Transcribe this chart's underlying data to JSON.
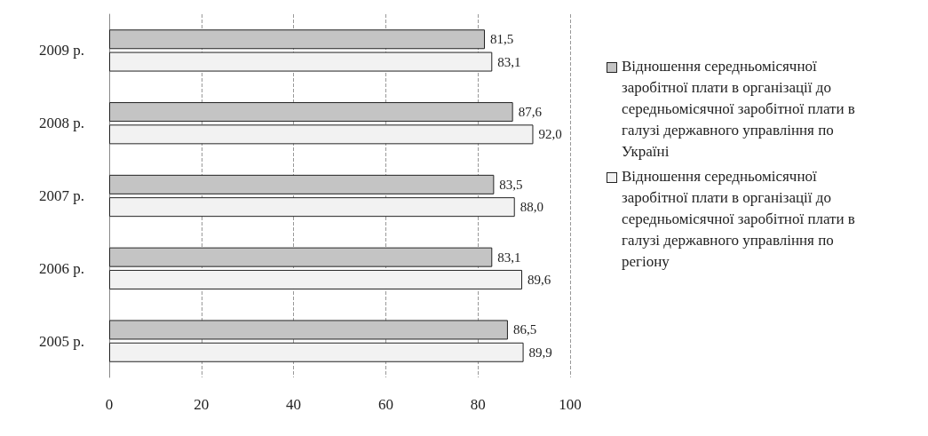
{
  "chart_data": {
    "type": "bar",
    "orientation": "horizontal",
    "categories": [
      "2009 р.",
      "2008 р.",
      "2007 р.",
      "2006 р.",
      "2005 р."
    ],
    "series": [
      {
        "name": "Відношення середньомісячної заробітної плати в організації до середньомісячної заробітної плати в галузі державного управління по Україні",
        "color": "#c4c4c4",
        "values": [
          81.5,
          87.6,
          83.5,
          83.1,
          86.5
        ],
        "value_labels": [
          "81,5",
          "87,6",
          "83,5",
          "83,1",
          "86,5"
        ]
      },
      {
        "name": "Відношення середньомісячної заробітної плати в організації до середньомісячної заробітної плати в галузі державного управління по регіону",
        "color": "#f2f2f2",
        "values": [
          83.1,
          92.0,
          88.0,
          89.6,
          89.9
        ],
        "value_labels": [
          "83,1",
          "92,0",
          "88,0",
          "89,6",
          "89,9"
        ]
      }
    ],
    "xlim": [
      0,
      100
    ],
    "xticks": [
      0,
      20,
      40,
      60,
      80,
      100
    ],
    "grid": "x",
    "legend": "right"
  }
}
